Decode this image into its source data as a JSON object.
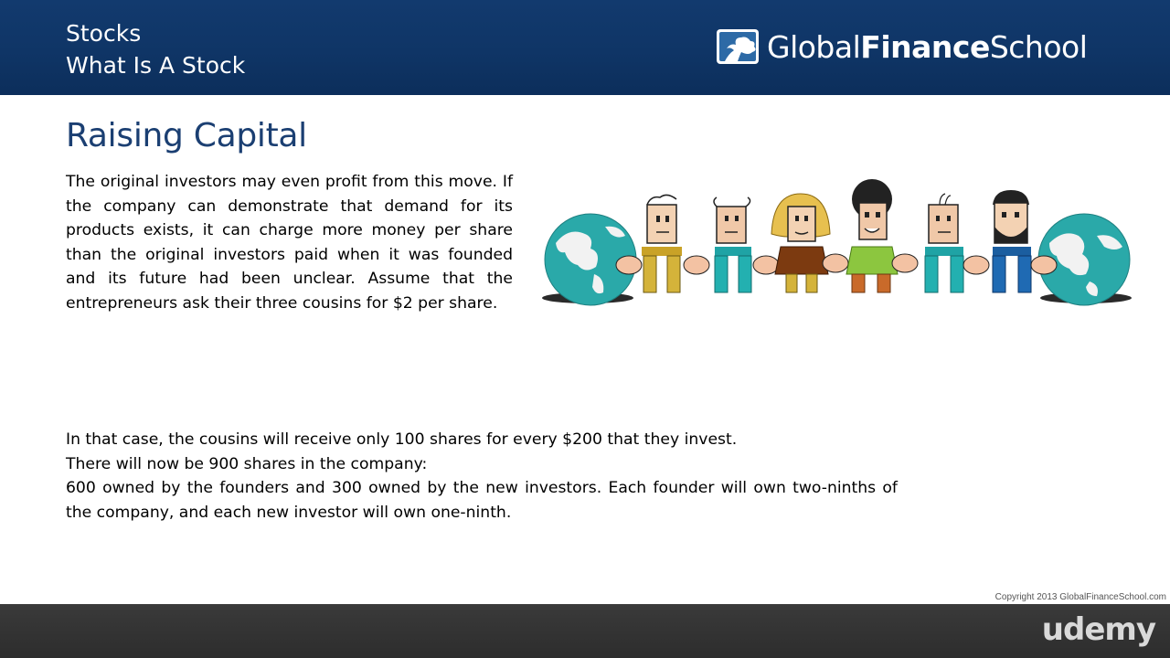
{
  "header": {
    "course": "Stocks",
    "lesson": "What Is A Stock",
    "logo": {
      "regular1": "Global",
      "bold": "Finance",
      "regular2": "School",
      "icon": "tree-icon"
    }
  },
  "slide": {
    "title": "Raising Capital",
    "intro": "The original investors may even profit from this move.  If the company can demonstrate that demand for its products exists, it can charge more money per share than the original investors paid when it was founded and its future had been unclear. Assume that the entrepreneurs ask their three cousins for $2 per share.",
    "body": [
      "In that case, the cousins will receive only 100 shares for every $200 that they invest.",
      "There will now be 900 shares in the company:",
      "600 owned by the founders and 300 owned by the new investors. Each founder will own two-ninths of the company, and each new investor will own one-ninth."
    ],
    "illustration": "globes-and-people-icon"
  },
  "copyright": "Copyright 2013 GlobalFinanceSchool.com",
  "footer": {
    "brand": "udemy"
  },
  "colors": {
    "header_bg": "#0f3566",
    "title": "#1b3f72",
    "footer_bg": "#2f2f2f"
  }
}
